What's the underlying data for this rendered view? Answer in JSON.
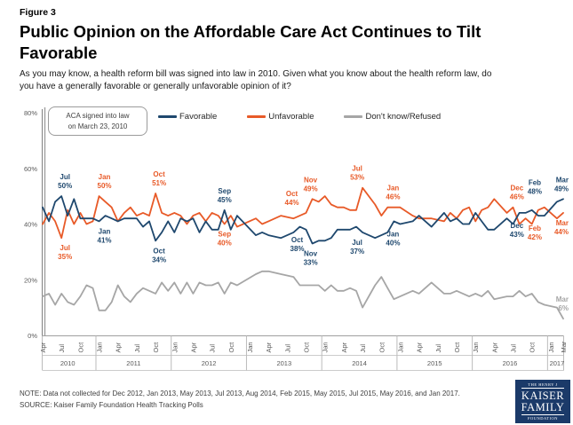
{
  "figure_label": "Figure 3",
  "title": {
    "line1": "Public Opinion on the Affordable Care Act Continues to Tilt",
    "line2": "Favorable"
  },
  "subtitle": {
    "line1": "As you may know, a health reform bill was signed into law in 2010. Given what you know about the health reform law, do",
    "line2": "you have a generally favorable or generally unfavorable opinion of it?"
  },
  "annotation_box": {
    "line1": "ACA signed into law",
    "line2": "on March 23, 2010"
  },
  "legend": [
    {
      "id": "favorable",
      "label": "Favorable",
      "color": "#1f486e"
    },
    {
      "id": "unfavorable",
      "label": "Unfavorable",
      "color": "#e85a28"
    },
    {
      "id": "dont_know",
      "label": "Don't know/Refused",
      "color": "#a6a6a6"
    }
  ],
  "note": "NOTE: Data not collected  for Dec 2012, Jan 2013, May 2013, Jul 2013, Aug 2014, Feb 2015, May 2015, Jul 2015, May 2016, and Jan 2017.",
  "source": "SOURCE: Kaiser Family Foundation Health Tracking Polls",
  "logo": {
    "top": "THE HENRY J",
    "name1": "KAISER",
    "name2": "FAMILY",
    "bottom": "FOUNDATION"
  },
  "chart_data": {
    "type": "line",
    "ylim": [
      0,
      80
    ],
    "grid": false,
    "legend_position": "top",
    "yticks": [
      [
        80,
        "80%"
      ],
      [
        60,
        "60%"
      ],
      [
        40,
        "40%"
      ],
      [
        20,
        "20%"
      ],
      [
        0,
        "0%"
      ]
    ],
    "x_axis": {
      "unit": "months since Apr 2010",
      "years": [
        {
          "label": "2010",
          "start": 0,
          "end": 8,
          "ticks": [
            [
              "Apr",
              0
            ],
            [
              "Jul",
              3
            ],
            [
              "Oct",
              6
            ]
          ]
        },
        {
          "label": "2011",
          "start": 9,
          "end": 20,
          "ticks": [
            [
              "Jan",
              9
            ],
            [
              "Apr",
              12
            ],
            [
              "Jul",
              15
            ],
            [
              "Oct",
              18
            ]
          ]
        },
        {
          "label": "2012",
          "start": 21,
          "end": 32,
          "ticks": [
            [
              "Jan",
              21
            ],
            [
              "Apr",
              24
            ],
            [
              "Jul",
              27
            ],
            [
              "Oct",
              30
            ]
          ]
        },
        {
          "label": "2013",
          "start": 33,
          "end": 44,
          "ticks": [
            [
              "Jan",
              33
            ],
            [
              "Apr",
              36
            ],
            [
              "Jul",
              39
            ],
            [
              "Oct",
              42
            ]
          ]
        },
        {
          "label": "2014",
          "start": 45,
          "end": 56,
          "ticks": [
            [
              "Jan",
              45
            ],
            [
              "Apr",
              48
            ],
            [
              "Jul",
              51
            ],
            [
              "Oct",
              54
            ]
          ]
        },
        {
          "label": "2015",
          "start": 57,
          "end": 68,
          "ticks": [
            [
              "Jan",
              57
            ],
            [
              "Apr",
              60
            ],
            [
              "Jul",
              63
            ],
            [
              "Oct",
              66
            ]
          ]
        },
        {
          "label": "2016",
          "start": 69,
          "end": 80,
          "ticks": [
            [
              "Jan",
              69
            ],
            [
              "Apr",
              72
            ],
            [
              "Jul",
              75
            ],
            [
              "Oct",
              78
            ]
          ]
        },
        {
          "label": "2017",
          "start": 81,
          "end": 83,
          "ticks": [
            [
              "Jan",
              81
            ],
            [
              "Mar",
              83
            ]
          ]
        }
      ]
    },
    "series_meta": [
      {
        "id": "favorable",
        "name": "Favorable",
        "color": "#1f486e"
      },
      {
        "id": "unfavorable",
        "name": "Unfavorable",
        "color": "#e85a28"
      },
      {
        "id": "dont_know",
        "name": "Don't know/Refused",
        "color": "#a6a6a6"
      }
    ],
    "points": {
      "columns": [
        "x_index",
        "month",
        "favorable",
        "unfavorable",
        "dont_know"
      ],
      "rows": [
        [
          0,
          "Apr 2010",
          46,
          40,
          14
        ],
        [
          1,
          "May 2010",
          41,
          44,
          15
        ],
        [
          2,
          "Jun 2010",
          48,
          41,
          11
        ],
        [
          3,
          "Jul 2010",
          50,
          35,
          15
        ],
        [
          4,
          "Aug 2010",
          43,
          45,
          12
        ],
        [
          5,
          "Sep 2010",
          49,
          40,
          11
        ],
        [
          6,
          "Oct 2010",
          42,
          44,
          14
        ],
        [
          7,
          "Nov 2010",
          42,
          40,
          18
        ],
        [
          8,
          "Dec 2010",
          42,
          41,
          17
        ],
        [
          9,
          "Jan 2011",
          41,
          50,
          9
        ],
        [
          10,
          "Feb 2011",
          43,
          48,
          9
        ],
        [
          11,
          "Mar 2011",
          42,
          46,
          12
        ],
        [
          12,
          "Apr 2011",
          41,
          41,
          18
        ],
        [
          13,
          "May 2011",
          42,
          44,
          14
        ],
        [
          14,
          "Jun 2011",
          42,
          46,
          12
        ],
        [
          15,
          "Jul 2011",
          42,
          43,
          15
        ],
        [
          16,
          "Aug 2011",
          39,
          44,
          17
        ],
        [
          17,
          "Sep 2011",
          41,
          43,
          16
        ],
        [
          18,
          "Oct 2011",
          34,
          51,
          15
        ],
        [
          19,
          "Nov 2011",
          37,
          44,
          19
        ],
        [
          20,
          "Dec 2011",
          41,
          43,
          16
        ],
        [
          21,
          "Jan 2012",
          37,
          44,
          19
        ],
        [
          22,
          "Feb 2012",
          42,
          43,
          15
        ],
        [
          23,
          "Mar 2012",
          41,
          40,
          19
        ],
        [
          24,
          "Apr 2012",
          42,
          43,
          15
        ],
        [
          25,
          "May 2012",
          37,
          44,
          19
        ],
        [
          26,
          "Jun 2012",
          41,
          41,
          18
        ],
        [
          27,
          "Jul 2012",
          38,
          44,
          18
        ],
        [
          28,
          "Aug 2012",
          38,
          43,
          19
        ],
        [
          29,
          "Sep 2012",
          45,
          40,
          15
        ],
        [
          30,
          "Oct 2012",
          38,
          43,
          19
        ],
        [
          31,
          "Nov 2012",
          43,
          39,
          18
        ],
        [
          34,
          "Feb 2013",
          36,
          42,
          22
        ],
        [
          35,
          "Mar 2013",
          37,
          40,
          23
        ],
        [
          36,
          "Apr 2013",
          36,
          41,
          23
        ],
        [
          38,
          "Jun 2013",
          35,
          43,
          22
        ],
        [
          40,
          "Aug 2013",
          37,
          42,
          21
        ],
        [
          41,
          "Sep 2013",
          39,
          43,
          18
        ],
        [
          42,
          "Oct 2013",
          38,
          44,
          18
        ],
        [
          43,
          "Nov 2013",
          33,
          49,
          18
        ],
        [
          44,
          "Dec 2013",
          34,
          48,
          18
        ],
        [
          45,
          "Jan 2014",
          34,
          50,
          16
        ],
        [
          46,
          "Feb 2014",
          35,
          47,
          18
        ],
        [
          47,
          "Mar 2014",
          38,
          46,
          16
        ],
        [
          48,
          "Apr 2014",
          38,
          46,
          16
        ],
        [
          49,
          "May 2014",
          38,
          45,
          17
        ],
        [
          50,
          "Jun 2014",
          39,
          45,
          16
        ],
        [
          51,
          "Jul 2014",
          37,
          53,
          10
        ],
        [
          53,
          "Sep 2014",
          35,
          47,
          18
        ],
        [
          54,
          "Oct 2014",
          36,
          43,
          21
        ],
        [
          55,
          "Nov 2014",
          37,
          46,
          17
        ],
        [
          56,
          "Dec 2014",
          41,
          46,
          13
        ],
        [
          57,
          "Jan 2015",
          40,
          46,
          14
        ],
        [
          59,
          "Mar 2015",
          41,
          43,
          16
        ],
        [
          60,
          "Apr 2015",
          43,
          42,
          15
        ],
        [
          62,
          "Jun 2015",
          39,
          42,
          19
        ],
        [
          64,
          "Aug 2015",
          44,
          41,
          15
        ],
        [
          65,
          "Sep 2015",
          41,
          44,
          15
        ],
        [
          66,
          "Oct 2015",
          42,
          42,
          16
        ],
        [
          67,
          "Nov 2015",
          40,
          45,
          15
        ],
        [
          68,
          "Dec 2015",
          40,
          46,
          14
        ],
        [
          69,
          "Jan 2016",
          44,
          41,
          15
        ],
        [
          70,
          "Feb 2016",
          41,
          45,
          14
        ],
        [
          71,
          "Mar 2016",
          38,
          46,
          16
        ],
        [
          72,
          "Apr 2016",
          38,
          49,
          13
        ],
        [
          74,
          "Jun 2016",
          42,
          44,
          14
        ],
        [
          75,
          "Jul 2016",
          40,
          46,
          14
        ],
        [
          76,
          "Aug 2016",
          44,
          40,
          16
        ],
        [
          77,
          "Sep 2016",
          44,
          42,
          14
        ],
        [
          78,
          "Oct 2016",
          45,
          40,
          15
        ],
        [
          79,
          "Nov 2016",
          43,
          45,
          12
        ],
        [
          80,
          "Dec 2016",
          43,
          46,
          11
        ],
        [
          82,
          "Feb 2017",
          48,
          42,
          10
        ],
        [
          83,
          "Mar 2017",
          49,
          44,
          6
        ]
      ]
    },
    "point_labels": {
      "columns": [
        "series",
        "x_index",
        "month_text",
        "value_text",
        "position",
        "dx"
      ],
      "rows": [
        [
          "favorable",
          3,
          "Jul",
          "50%",
          "above",
          4
        ],
        [
          "unfavorable",
          3,
          "Jul",
          "35%",
          "below",
          4
        ],
        [
          "unfavorable",
          9,
          "Jan",
          "50%",
          "above",
          6
        ],
        [
          "favorable",
          9,
          "Jan",
          "41%",
          "below",
          6
        ],
        [
          "unfavorable",
          18,
          "Oct",
          "51%",
          "above",
          4
        ],
        [
          "favorable",
          18,
          "Oct",
          "34%",
          "below",
          4
        ],
        [
          "favorable",
          29,
          "Sep",
          "45%",
          "above",
          0
        ],
        [
          "unfavorable",
          29,
          "Sep",
          "40%",
          "below",
          0
        ],
        [
          "unfavorable",
          42,
          "Oct",
          "44%",
          "above",
          -16
        ],
        [
          "favorable",
          42,
          "Oct",
          "38%",
          "below",
          -10
        ],
        [
          "unfavorable",
          43,
          "Nov",
          "49%",
          "above",
          -2
        ],
        [
          "favorable",
          43,
          "Nov",
          "33%",
          "below",
          -2
        ],
        [
          "unfavorable",
          51,
          "Jul",
          "53%",
          "above",
          -6
        ],
        [
          "favorable",
          51,
          "Jul",
          "37%",
          "below",
          -6
        ],
        [
          "unfavorable",
          57,
          "Jan",
          "46%",
          "above",
          -8
        ],
        [
          "favorable",
          57,
          "Jan",
          "40%",
          "below",
          -8
        ],
        [
          "unfavorable",
          80,
          "Dec",
          "46%",
          "above",
          -31
        ],
        [
          "favorable",
          80,
          "Dec",
          "43%",
          "below",
          -31
        ],
        [
          "favorable",
          82,
          "Feb",
          "48%",
          "above",
          -25
        ],
        [
          "unfavorable",
          82,
          "Feb",
          "42%",
          "below",
          -25
        ],
        [
          "favorable",
          83,
          "Mar",
          "49%",
          "above",
          0
        ],
        [
          "unfavorable",
          83,
          "Mar",
          "44%",
          "below",
          0
        ],
        [
          "dont_know",
          83,
          "Mar",
          "6%",
          "above",
          0
        ]
      ]
    }
  }
}
